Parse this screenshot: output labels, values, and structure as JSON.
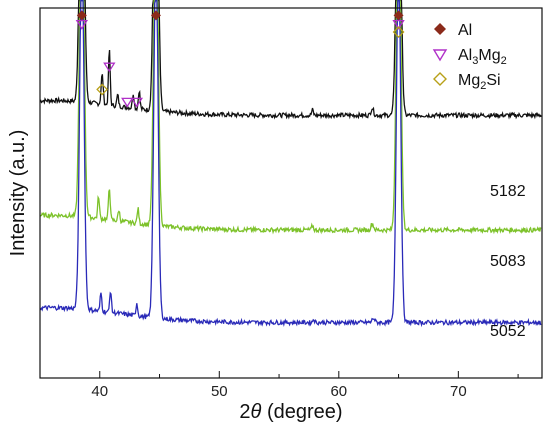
{
  "chart_data": {
    "type": "line",
    "xlabel_prefix": "2",
    "xlabel_theta": "θ",
    "xlabel_suffix": " (degree)",
    "ylabel": "Intensity (a.u.)",
    "xlim": [
      35,
      77
    ],
    "xticks": [
      40,
      50,
      60,
      70
    ],
    "series": [
      {
        "name": "5182",
        "color": "#111111",
        "baseline": 0.71,
        "peaks": [
          {
            "x": 38.5,
            "h": 1.0,
            "w": 0.25
          },
          {
            "x": 44.7,
            "h": 1.0,
            "w": 0.25
          },
          {
            "x": 65.0,
            "h": 1.0,
            "w": 0.25
          },
          {
            "x": 40.2,
            "h": 0.08,
            "w": 0.12
          },
          {
            "x": 40.8,
            "h": 0.15,
            "w": 0.1
          },
          {
            "x": 41.5,
            "h": 0.03,
            "w": 0.1
          },
          {
            "x": 42.8,
            "h": 0.04,
            "w": 0.1
          },
          {
            "x": 43.3,
            "h": 0.05,
            "w": 0.1
          },
          {
            "x": 57.8,
            "h": 0.015,
            "w": 0.1
          },
          {
            "x": 62.8,
            "h": 0.02,
            "w": 0.15
          }
        ]
      },
      {
        "name": "5083",
        "color": "#7dc22a",
        "baseline": 0.4,
        "peaks": [
          {
            "x": 38.5,
            "h": 1.0,
            "w": 0.25
          },
          {
            "x": 44.7,
            "h": 1.0,
            "w": 0.25
          },
          {
            "x": 65.0,
            "h": 1.0,
            "w": 0.25
          },
          {
            "x": 39.9,
            "h": 0.06,
            "w": 0.1
          },
          {
            "x": 40.8,
            "h": 0.09,
            "w": 0.1
          },
          {
            "x": 41.6,
            "h": 0.03,
            "w": 0.1
          },
          {
            "x": 43.2,
            "h": 0.04,
            "w": 0.1
          },
          {
            "x": 57.8,
            "h": 0.012,
            "w": 0.1
          },
          {
            "x": 62.8,
            "h": 0.018,
            "w": 0.15
          }
        ]
      },
      {
        "name": "5052",
        "color": "#2a2ab8",
        "baseline": 0.15,
        "peaks": [
          {
            "x": 38.5,
            "h": 1.0,
            "w": 0.25
          },
          {
            "x": 44.7,
            "h": 1.0,
            "w": 0.25
          },
          {
            "x": 65.0,
            "h": 1.0,
            "w": 0.25
          },
          {
            "x": 40.1,
            "h": 0.05,
            "w": 0.1
          },
          {
            "x": 40.9,
            "h": 0.06,
            "w": 0.1
          },
          {
            "x": 43.1,
            "h": 0.035,
            "w": 0.1
          },
          {
            "x": 57.9,
            "h": 0.01,
            "w": 0.1
          },
          {
            "x": 62.9,
            "h": 0.012,
            "w": 0.15
          }
        ]
      }
    ],
    "legend": {
      "position": "top-right",
      "entries": [
        {
          "label_main": "Al",
          "subscripts": [],
          "marker": "diamond-filled",
          "color": "#8b2a1a"
        },
        {
          "label_main": "Al3Mg2",
          "parts": [
            [
              "Al",
              false
            ],
            [
              "3",
              true
            ],
            [
              "Mg",
              false
            ],
            [
              "2",
              true
            ]
          ],
          "marker": "triangle-down-open",
          "color": "#b030c8"
        },
        {
          "label_main": "Mg2Si",
          "parts": [
            [
              "Mg",
              false
            ],
            [
              "2",
              true
            ],
            [
              "Si",
              false
            ]
          ],
          "marker": "diamond-open",
          "color": "#b8a018"
        }
      ]
    },
    "annotations": [
      {
        "x": 38.5,
        "level": 0.98,
        "marker": "diamond-filled",
        "color": "#8b2a1a"
      },
      {
        "x": 38.5,
        "level": 0.955,
        "marker": "triangle-down-open",
        "color": "#b030c8"
      },
      {
        "x": 44.7,
        "level": 0.98,
        "marker": "diamond-filled",
        "color": "#8b2a1a"
      },
      {
        "x": 65.0,
        "level": 0.98,
        "marker": "diamond-filled",
        "color": "#8b2a1a"
      },
      {
        "x": 65.0,
        "level": 0.955,
        "marker": "triangle-down-open",
        "color": "#b030c8"
      },
      {
        "x": 65.0,
        "level": 0.935,
        "marker": "diamond-open",
        "color": "#b8a018"
      },
      {
        "x": 40.8,
        "level": 0.84,
        "marker": "triangle-down-open",
        "color": "#b030c8"
      },
      {
        "x": 40.2,
        "level": 0.78,
        "marker": "diamond-open",
        "color": "#b8a018"
      },
      {
        "x": 42.3,
        "level": 0.745,
        "marker": "triangle-down-open",
        "color": "#b030c8"
      },
      {
        "x": 43.1,
        "level": 0.745,
        "marker": "triangle-down-open",
        "color": "#b030c8"
      }
    ]
  }
}
